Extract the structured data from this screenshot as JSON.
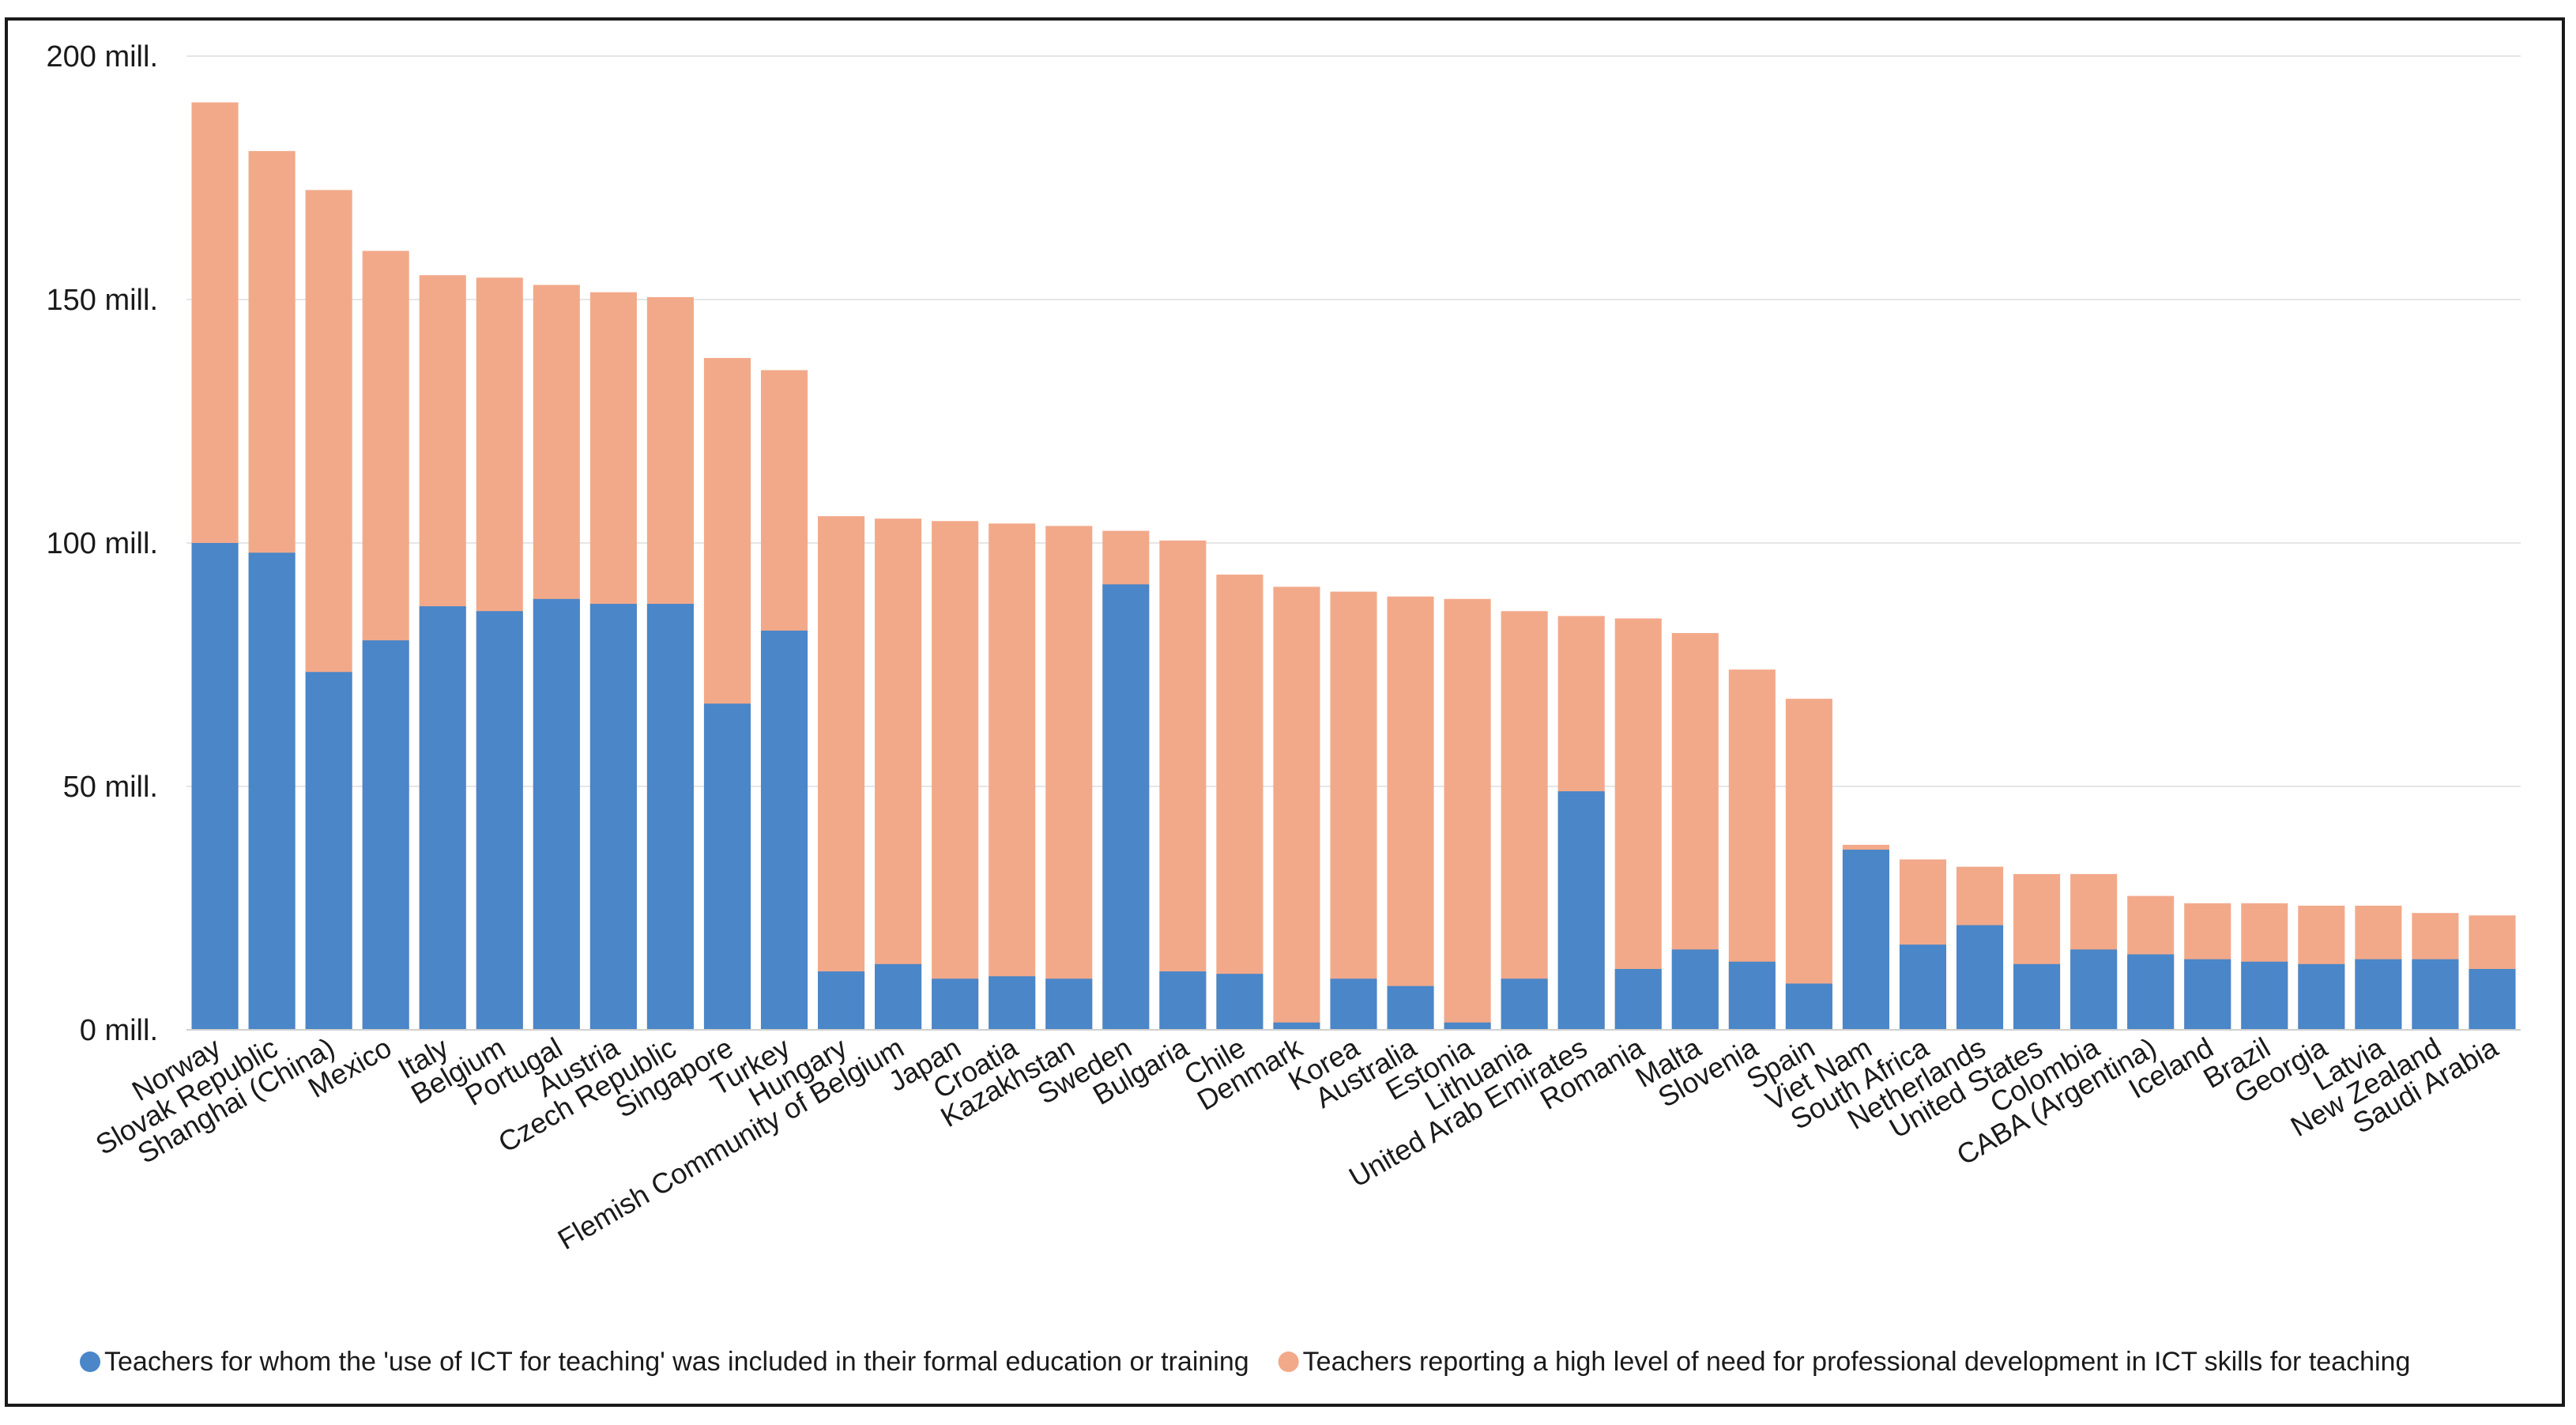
{
  "chart_data": {
    "type": "bar",
    "stacking": "overlay",
    "title": "",
    "xlabel": "",
    "ylabel": "",
    "ylim": [
      0,
      200
    ],
    "yticks": [
      {
        "value": 0,
        "label": "0 mill."
      },
      {
        "value": 50,
        "label": "50 mill."
      },
      {
        "value": 100,
        "label": "100 mill."
      },
      {
        "value": 150,
        "label": "150 mill."
      },
      {
        "value": 200,
        "label": "200 mill."
      }
    ],
    "grid": true,
    "legend_position": "bottom",
    "categories": [
      "Norway",
      "Slovak Republic",
      "Shanghai (China)",
      "Mexico",
      "Italy",
      "Belgium",
      "Portugal",
      "Austria",
      "Czech Republic",
      "Singapore",
      "Turkey",
      "Hungary",
      "Flemish Community of Belgium",
      "Japan",
      "Croatia",
      "Kazakhstan",
      "Sweden",
      "Bulgaria",
      "Chile",
      "Denmark",
      "Korea",
      "Australia",
      "Estonia",
      "Lithuania",
      "United Arab Emirates",
      "Romania",
      "Malta",
      "Slovenia",
      "Spain",
      "Viet Nam",
      "South Africa",
      "Netherlands",
      "United States",
      "Colombia",
      "CABA (Argentina)",
      "Iceland",
      "Brazil",
      "Georgia",
      "Latvia",
      "New Zealand",
      "Saudi Arabia"
    ],
    "series": [
      {
        "name": "Teachers reporting a high level of need for professional development in ICT skills for teaching",
        "color": "#F2A98A",
        "values": [
          190.5,
          180.5,
          172.5,
          160,
          155,
          154.5,
          153,
          151.5,
          150.5,
          138,
          135.5,
          105.5,
          105,
          104.5,
          104,
          103.5,
          102.5,
          100.5,
          93.5,
          91,
          90,
          89,
          88.5,
          86,
          85,
          84.5,
          81.5,
          74,
          68,
          38,
          35,
          33.5,
          32,
          32,
          27.5,
          26,
          26,
          25.5,
          25.5,
          24,
          23.5
        ]
      },
      {
        "name": "Teachers for whom the 'use of ICT for teaching' was included in their formal education or training",
        "color": "#4A86C8",
        "values": [
          100,
          98,
          73.5,
          80,
          87,
          86,
          88.5,
          87.5,
          87.5,
          67,
          82,
          12,
          13.5,
          10.5,
          11,
          10.5,
          91.5,
          12,
          11.5,
          1.5,
          10.5,
          9,
          1.5,
          10.5,
          49,
          12.5,
          16.5,
          14,
          9.5,
          37,
          17.5,
          21.5,
          13.5,
          16.5,
          15.5,
          14.5,
          14,
          13.5,
          14.5,
          14.5,
          12.5
        ]
      }
    ],
    "legend": [
      {
        "label": "Teachers for whom the 'use of ICT for teaching' was included in their formal education or training",
        "color": "#4A86C8"
      },
      {
        "label": "Teachers reporting a high level of need for professional development in ICT skills for teaching",
        "color": "#F2A98A"
      }
    ],
    "gridline_color": "#e6e6e6"
  }
}
